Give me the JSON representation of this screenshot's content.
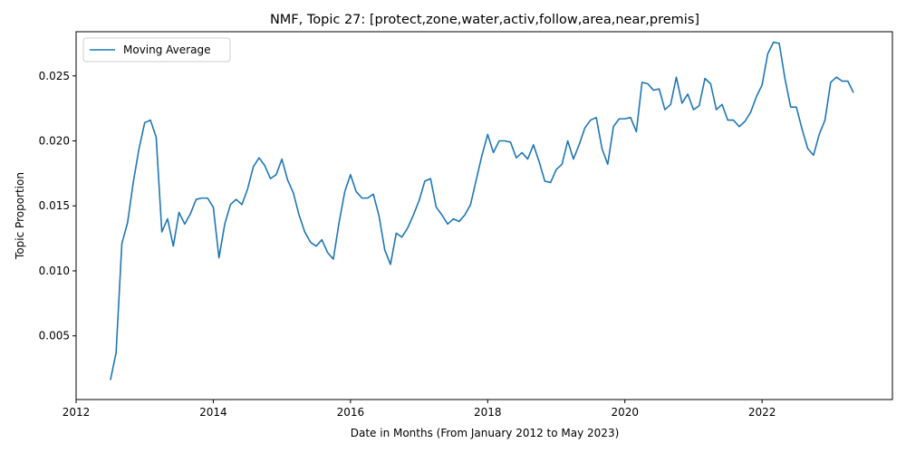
{
  "chart_data": {
    "type": "line",
    "title": "NMF, Topic 27: [protect,zone,water,activ,follow,area,near,premis]",
    "xlabel": "Date in Months (From January 2012 to May 2023)",
    "ylabel": "Topic Proportion",
    "xlim": [
      2012.0,
      2023.9
    ],
    "ylim": [
      0.0001,
      0.0284
    ],
    "x_ticks": [
      2012,
      2014,
      2016,
      2018,
      2020,
      2022
    ],
    "x_tick_labels": [
      "2012",
      "2014",
      "2016",
      "2018",
      "2020",
      "2022"
    ],
    "y_ticks": [
      0.005,
      0.01,
      0.015,
      0.02,
      0.025
    ],
    "y_tick_labels": [
      "0.005",
      "0.010",
      "0.015",
      "0.020",
      "0.025"
    ],
    "legend_position": "upper-left",
    "grid": false,
    "series": [
      {
        "name": "Moving Average",
        "color": "#1f77b4",
        "x": [
          2012.5,
          2012.583,
          2012.667,
          2012.75,
          2012.833,
          2012.917,
          2013.0,
          2013.083,
          2013.167,
          2013.25,
          2013.333,
          2013.417,
          2013.5,
          2013.583,
          2013.667,
          2013.75,
          2013.833,
          2013.917,
          2014.0,
          2014.083,
          2014.167,
          2014.25,
          2014.333,
          2014.417,
          2014.5,
          2014.583,
          2014.667,
          2014.75,
          2014.833,
          2014.917,
          2015.0,
          2015.083,
          2015.167,
          2015.25,
          2015.333,
          2015.417,
          2015.5,
          2015.583,
          2015.667,
          2015.75,
          2015.833,
          2015.917,
          2016.0,
          2016.083,
          2016.167,
          2016.25,
          2016.333,
          2016.417,
          2016.5,
          2016.583,
          2016.667,
          2016.75,
          2016.833,
          2016.917,
          2017.0,
          2017.083,
          2017.167,
          2017.25,
          2017.333,
          2017.417,
          2017.5,
          2017.583,
          2017.667,
          2017.75,
          2017.833,
          2017.917,
          2018.0,
          2018.083,
          2018.167,
          2018.25,
          2018.333,
          2018.417,
          2018.5,
          2018.583,
          2018.667,
          2018.75,
          2018.833,
          2018.917,
          2019.0,
          2019.083,
          2019.167,
          2019.25,
          2019.333,
          2019.417,
          2019.5,
          2019.583,
          2019.667,
          2019.75,
          2019.833,
          2019.917,
          2020.0,
          2020.083,
          2020.167,
          2020.25,
          2020.333,
          2020.417,
          2020.5,
          2020.583,
          2020.667,
          2020.75,
          2020.833,
          2020.917,
          2021.0,
          2021.083,
          2021.167,
          2021.25,
          2021.333,
          2021.417,
          2021.5,
          2021.583,
          2021.667,
          2021.75,
          2021.833,
          2021.917,
          2022.0,
          2022.083,
          2022.167,
          2022.25,
          2022.333,
          2022.417,
          2022.5,
          2022.583,
          2022.667,
          2022.75,
          2022.833,
          2022.917,
          2023.0,
          2023.083,
          2023.167,
          2023.25,
          2023.333
        ],
        "y": [
          0.0016,
          0.0037,
          0.0121,
          0.0137,
          0.0168,
          0.0194,
          0.0214,
          0.0216,
          0.0203,
          0.013,
          0.014,
          0.0119,
          0.0145,
          0.0136,
          0.0144,
          0.0155,
          0.0156,
          0.0156,
          0.0149,
          0.011,
          0.0136,
          0.0151,
          0.0155,
          0.0151,
          0.0163,
          0.018,
          0.0187,
          0.0181,
          0.0171,
          0.0174,
          0.0186,
          0.017,
          0.016,
          0.0143,
          0.013,
          0.0122,
          0.0119,
          0.0124,
          0.0114,
          0.0109,
          0.0137,
          0.0161,
          0.0174,
          0.0161,
          0.0156,
          0.0156,
          0.0159,
          0.0142,
          0.0116,
          0.0105,
          0.0129,
          0.0126,
          0.0133,
          0.0143,
          0.0154,
          0.0169,
          0.0171,
          0.0149,
          0.0143,
          0.0136,
          0.014,
          0.0138,
          0.0143,
          0.0151,
          0.017,
          0.0189,
          0.0205,
          0.0191,
          0.02,
          0.02,
          0.0199,
          0.0187,
          0.0191,
          0.0186,
          0.0197,
          0.0184,
          0.0169,
          0.0168,
          0.0178,
          0.0182,
          0.02,
          0.0186,
          0.0197,
          0.021,
          0.0216,
          0.0218,
          0.0194,
          0.0182,
          0.0211,
          0.0217,
          0.0217,
          0.0218,
          0.0207,
          0.0245,
          0.0244,
          0.0239,
          0.024,
          0.0224,
          0.0228,
          0.0249,
          0.0229,
          0.0236,
          0.0224,
          0.0227,
          0.0248,
          0.0244,
          0.0224,
          0.0228,
          0.0216,
          0.0216,
          0.0211,
          0.0215,
          0.0222,
          0.0234,
          0.0243,
          0.0267,
          0.0276,
          0.0275,
          0.0248,
          0.0226,
          0.0226,
          0.0209,
          0.0194,
          0.0189,
          0.0205,
          0.0216,
          0.0245,
          0.0249,
          0.0246,
          0.0246,
          0.0237
        ]
      }
    ]
  }
}
